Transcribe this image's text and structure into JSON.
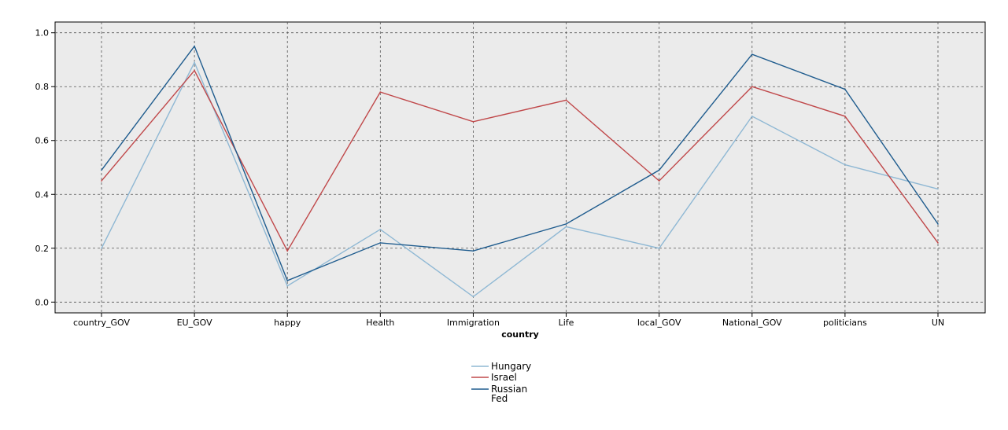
{
  "chart_data": {
    "type": "line",
    "xlabel": "country",
    "ylabel": "",
    "categories": [
      "country_GOV",
      "EU_GOV",
      "happy",
      "Health",
      "Immigration",
      "Life",
      "local_GOV",
      "National_GOV",
      "politicians",
      "UN"
    ],
    "ylim": [
      -0.04,
      1.04
    ],
    "yticks": [
      "0.0",
      "0.2",
      "0.4",
      "0.6",
      "0.8",
      "1.0"
    ],
    "grid": true,
    "legend_position": "bottom-center",
    "background_color": "#ebebeb",
    "series": [
      {
        "name": "Hungary",
        "color": "#8fb8d4",
        "values": [
          0.2,
          0.89,
          0.06,
          0.27,
          0.02,
          0.28,
          0.2,
          0.69,
          0.51,
          0.42
        ]
      },
      {
        "name": "Israel",
        "color": "#c0484a",
        "values": [
          0.45,
          0.86,
          0.19,
          0.78,
          0.67,
          0.75,
          0.45,
          0.8,
          0.69,
          0.22
        ]
      },
      {
        "name": "Russian Fed",
        "name_lines": [
          "Russian",
          "Fed"
        ],
        "color": "#1f5c8e",
        "values": [
          0.49,
          0.95,
          0.08,
          0.22,
          0.19,
          0.29,
          0.49,
          0.92,
          0.79,
          0.29
        ]
      }
    ]
  }
}
